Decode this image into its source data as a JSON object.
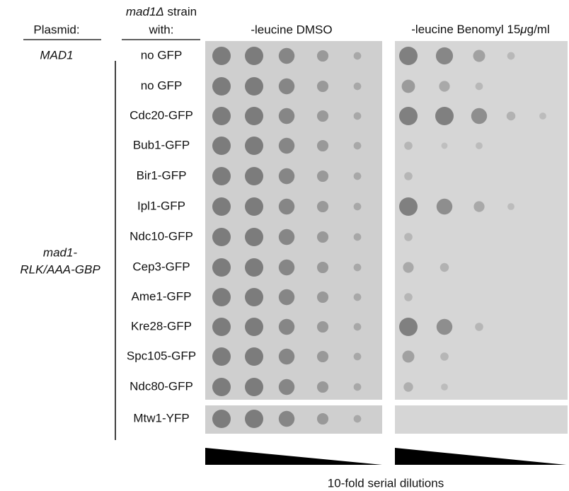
{
  "header": {
    "plasmid_label": "Plasmid:",
    "strain_label_italic": "mad1Δ",
    "strain_label_rest": " strain",
    "strain_label_line2": "with:",
    "conditions": [
      "-leucine DMSO",
      {
        "pre": "-leucine Benomyl 15",
        "mu": "μ",
        "post": "g/ml"
      }
    ]
  },
  "plasmids": {
    "control": "MAD1",
    "mutant_line1": "mad1-",
    "mutant_line2": "RLK/AAA-GBP"
  },
  "rows": [
    "no GFP",
    "no GFP",
    "Cdc20-GFP",
    "Bub1-GFP",
    "Bir1-GFP",
    "Ipl1-GFP",
    "Ndc10-GFP",
    "Cep3-GFP",
    "Ame1-GFP",
    "Kre28-GFP",
    "Spc105-GFP",
    "Ndc80-GFP",
    "Mtw1-YFP"
  ],
  "footer": "10-fold serial dilutions"
}
